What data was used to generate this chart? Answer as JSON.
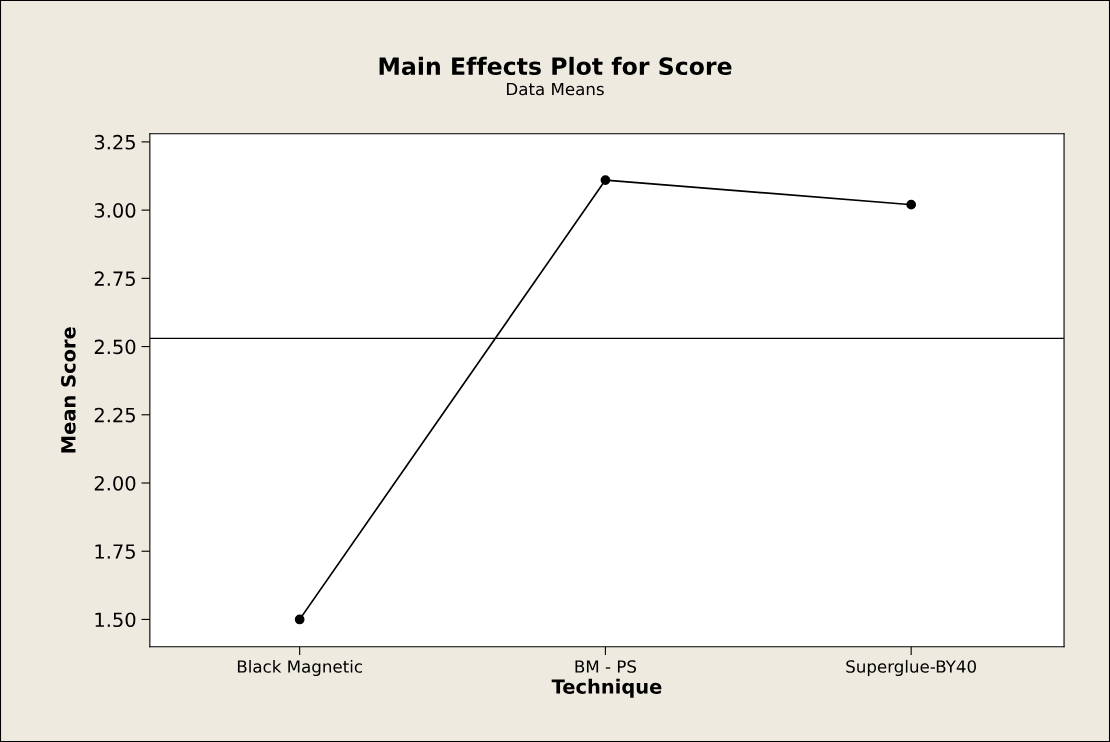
{
  "chart_data": {
    "type": "line",
    "title": "Main Effects Plot for Score",
    "subtitle": "Data Means",
    "xlabel": "Technique",
    "ylabel": "Mean Score",
    "categories": [
      "Black Magnetic",
      "BM - PS",
      "Superglue-BY40"
    ],
    "series": [
      {
        "color": "#000000",
        "values": [
          1.5,
          3.11,
          3.02
        ]
      }
    ],
    "ylim": [
      1.4,
      3.28
    ],
    "yticks": [
      {
        "value": 1.5,
        "label": "1.50"
      },
      {
        "value": 1.75,
        "label": "1.75"
      },
      {
        "value": 2.0,
        "label": "2.00"
      },
      {
        "value": 2.25,
        "label": "2.25"
      },
      {
        "value": 2.5,
        "label": "2.50"
      },
      {
        "value": 2.75,
        "label": "2.75"
      },
      {
        "value": 3.0,
        "label": "3.00"
      },
      {
        "value": 3.25,
        "label": "3.25"
      }
    ],
    "ref_lines": [
      {
        "axis": "y",
        "value": 2.53,
        "label": null,
        "color": "#000000"
      }
    ],
    "grid": false,
    "marker": "circle",
    "line_style": "solid"
  }
}
